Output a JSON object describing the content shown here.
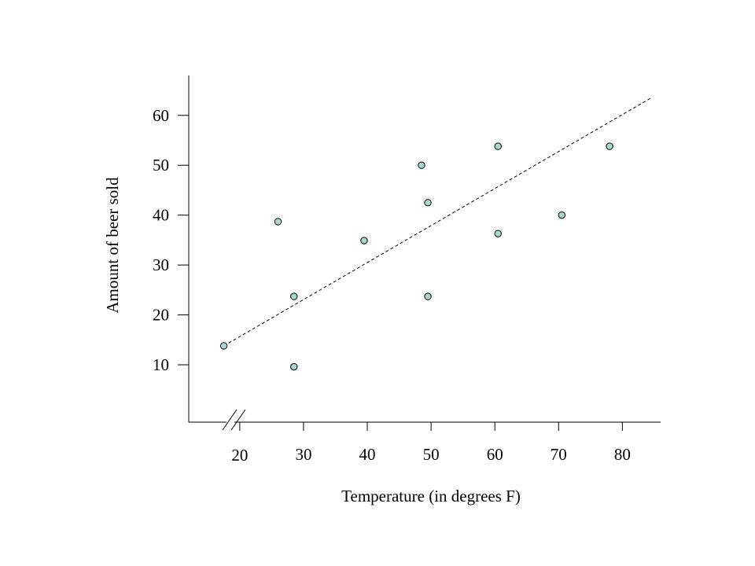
{
  "chart_data": {
    "type": "scatter",
    "title": "",
    "xlabel": "Temperature (in degrees F)",
    "ylabel": "Amount of beer sold",
    "xlim": [
      12,
      86
    ],
    "ylim": [
      -1.5,
      68
    ],
    "xticks": [
      20,
      30,
      40,
      50,
      60,
      70,
      80
    ],
    "yticks": [
      10,
      20,
      30,
      40,
      50,
      60
    ],
    "grid": false,
    "axis_break": "x",
    "point_color": "#a9d8d4",
    "points": [
      {
        "x": 17.5,
        "y": 13.8
      },
      {
        "x": 26.0,
        "y": 38.7
      },
      {
        "x": 28.5,
        "y": 23.7
      },
      {
        "x": 28.5,
        "y": 9.6
      },
      {
        "x": 39.5,
        "y": 34.9
      },
      {
        "x": 48.5,
        "y": 50.0
      },
      {
        "x": 49.5,
        "y": 42.5
      },
      {
        "x": 49.5,
        "y": 23.7
      },
      {
        "x": 60.5,
        "y": 53.8
      },
      {
        "x": 60.5,
        "y": 36.3
      },
      {
        "x": 70.5,
        "y": 40.0
      },
      {
        "x": 78.0,
        "y": 53.8
      }
    ],
    "trendline": {
      "style": "dashed",
      "x": [
        17.5,
        84.5
      ],
      "y": [
        13.8,
        63.5
      ]
    }
  }
}
